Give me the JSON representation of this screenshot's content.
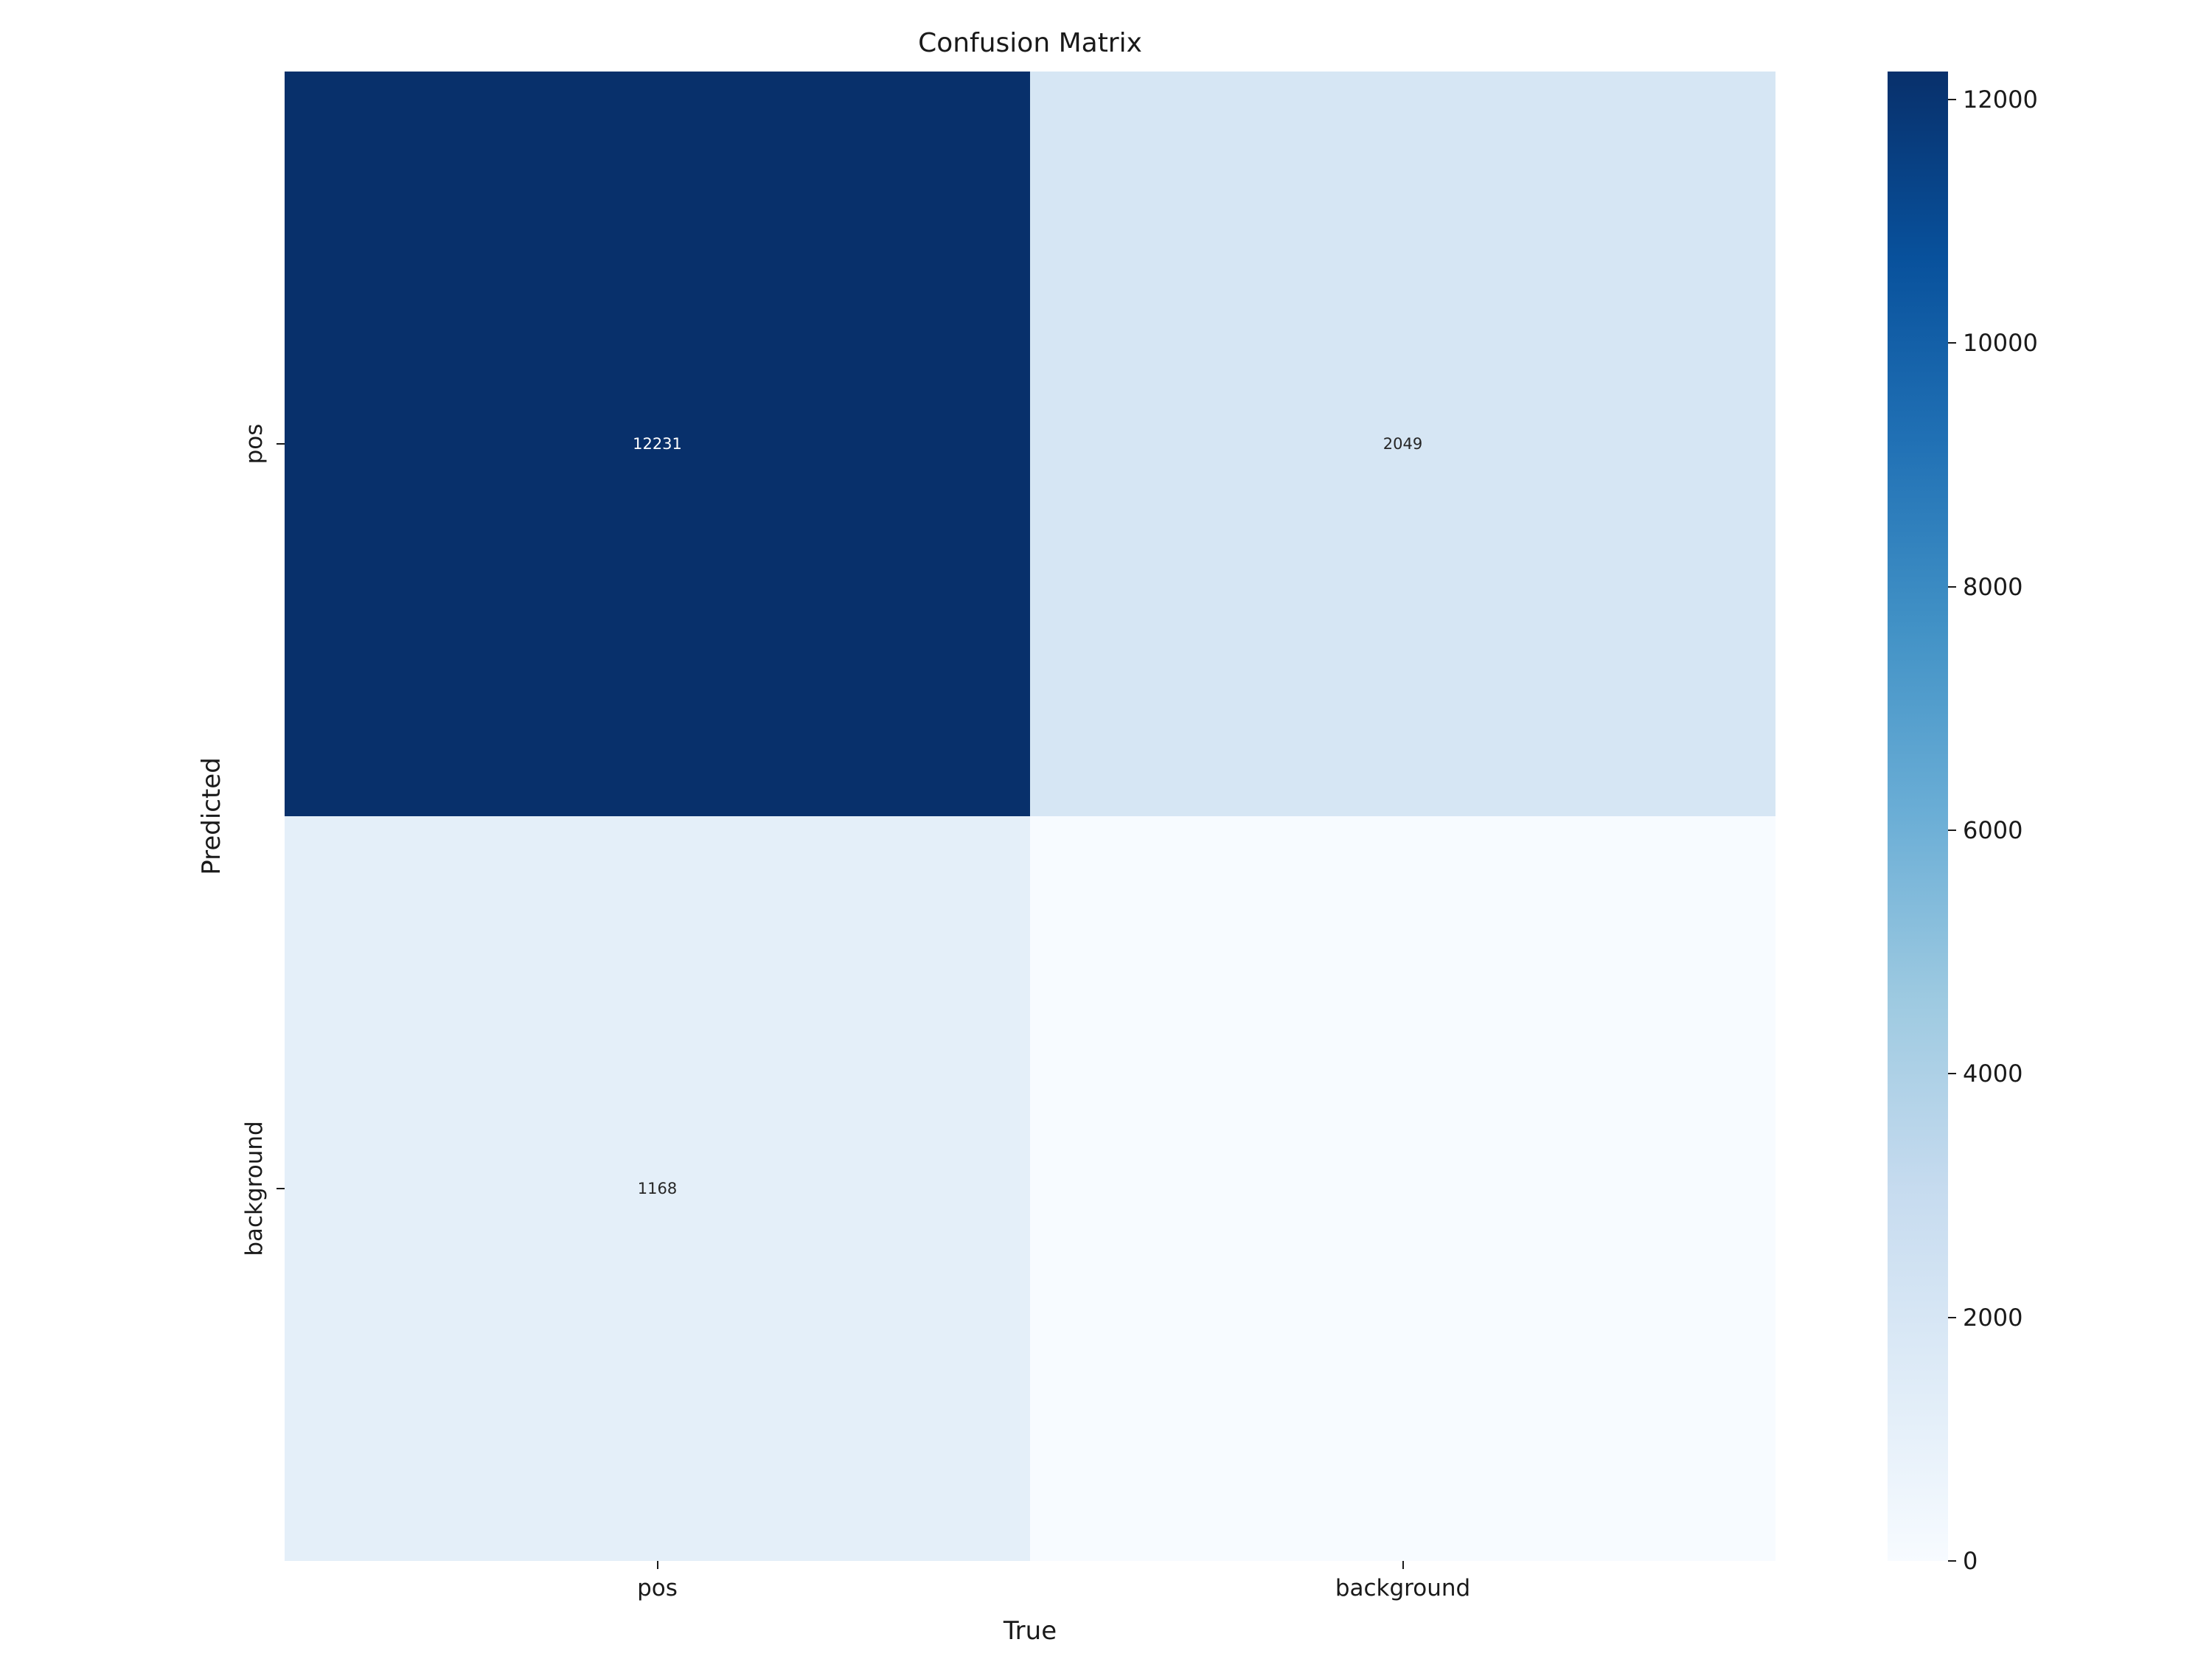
{
  "figure": {
    "title": "Confusion Matrix"
  },
  "chart_data": {
    "type": "heatmap",
    "title": "Confusion Matrix",
    "xlabel": "True",
    "ylabel": "Predicted",
    "x_categories": [
      "pos",
      "background"
    ],
    "y_categories": [
      "pos",
      "background"
    ],
    "values": [
      [
        12231,
        2049
      ],
      [
        1168,
        0
      ]
    ],
    "annotations": [
      [
        "12231",
        "2049"
      ],
      [
        "1168",
        ""
      ]
    ],
    "cell_colors": [
      [
        "#08306b",
        "#d6e6f4"
      ],
      [
        "#e4eff9",
        "#f7fbff"
      ]
    ],
    "annotation_text_colors": [
      [
        "#ffffff",
        "#262626"
      ],
      [
        "#262626",
        "#262626"
      ]
    ],
    "colormap": "Blues",
    "colormap_stops": [
      "#f7fbff",
      "#deebf7",
      "#c6dbef",
      "#9ecae1",
      "#6baed6",
      "#4292c6",
      "#2171b5",
      "#08519c",
      "#08306b"
    ],
    "vmin": 0,
    "vmax": 12231,
    "colorbar_ticks": [
      0,
      2000,
      4000,
      6000,
      8000,
      10000,
      12000
    ],
    "colorbar_position": "right",
    "grid": false,
    "background_color": "#ffffff",
    "text_color": "#1a1a1a"
  }
}
